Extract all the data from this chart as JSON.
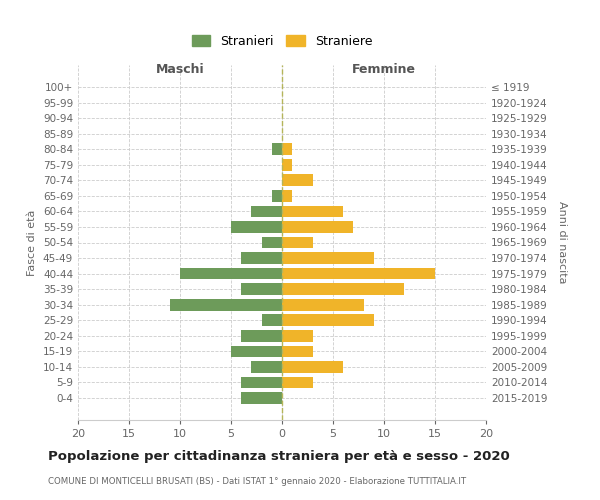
{
  "age_groups": [
    "100+",
    "95-99",
    "90-94",
    "85-89",
    "80-84",
    "75-79",
    "70-74",
    "65-69",
    "60-64",
    "55-59",
    "50-54",
    "45-49",
    "40-44",
    "35-39",
    "30-34",
    "25-29",
    "20-24",
    "15-19",
    "10-14",
    "5-9",
    "0-4"
  ],
  "birth_years": [
    "≤ 1919",
    "1920-1924",
    "1925-1929",
    "1930-1934",
    "1935-1939",
    "1940-1944",
    "1945-1949",
    "1950-1954",
    "1955-1959",
    "1960-1964",
    "1965-1969",
    "1970-1974",
    "1975-1979",
    "1980-1984",
    "1985-1989",
    "1990-1994",
    "1995-1999",
    "2000-2004",
    "2005-2009",
    "2010-2014",
    "2015-2019"
  ],
  "maschi": [
    0,
    0,
    0,
    0,
    1,
    0,
    0,
    1,
    3,
    5,
    2,
    4,
    10,
    4,
    11,
    2,
    4,
    5,
    3,
    4,
    4
  ],
  "femmine": [
    0,
    0,
    0,
    0,
    1,
    1,
    3,
    1,
    6,
    7,
    3,
    9,
    15,
    12,
    8,
    9,
    3,
    3,
    6,
    3,
    0
  ],
  "color_maschi": "#6d9b5a",
  "color_femmine": "#f0b429",
  "title": "Popolazione per cittadinanza straniera per età e sesso - 2020",
  "subtitle": "COMUNE DI MONTICELLI BRUSATI (BS) - Dati ISTAT 1° gennaio 2020 - Elaborazione TUTTITALIA.IT",
  "xlabel_left": "Maschi",
  "xlabel_right": "Femmine",
  "ylabel_left": "Fasce di età",
  "ylabel_right": "Anni di nascita",
  "legend_maschi": "Stranieri",
  "legend_femmine": "Straniere",
  "xlim": 20,
  "background_color": "#ffffff",
  "grid_color": "#cccccc"
}
